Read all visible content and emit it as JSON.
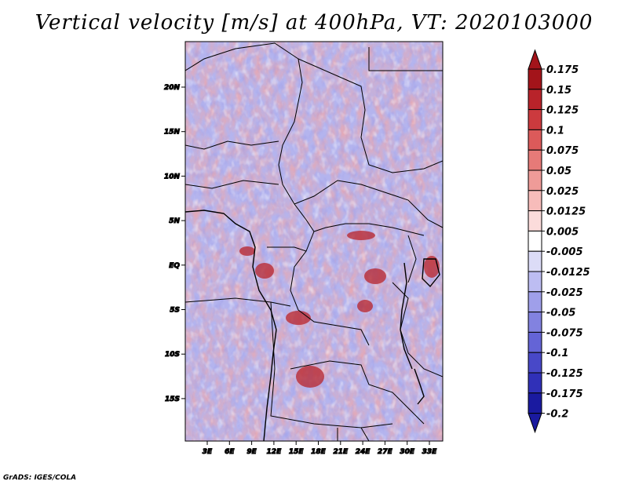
{
  "title": "Vertical velocity [m/s] at 400hPa, VT: 2020103000",
  "credit": "GrADS: IGES/COLA",
  "map": {
    "lat_labels": [
      "20N",
      "15N",
      "10N",
      "5N",
      "EQ",
      "5S",
      "10S",
      "15S"
    ],
    "lon_labels": [
      "3E",
      "6E",
      "9E",
      "12E",
      "15E",
      "18E",
      "21E",
      "24E",
      "27E",
      "30E",
      "33E"
    ]
  },
  "colorbar": {
    "levels": [
      "0.175",
      "0.15",
      "0.125",
      "0.1",
      "0.075",
      "0.05",
      "0.025",
      "0.0125",
      "0.005",
      "-0.005",
      "-0.0125",
      "-0.025",
      "-0.05",
      "-0.075",
      "-0.1",
      "-0.125",
      "-0.175",
      "-0.2"
    ],
    "colors": [
      "#a3141a",
      "#b8232a",
      "#cc3a3e",
      "#dc5a5a",
      "#e67a78",
      "#ef9b98",
      "#f7bcba",
      "#fbdcdb",
      "#ffffff",
      "#dcdcf7",
      "#bdbdf2",
      "#9f9fea",
      "#8282e0",
      "#6464d6",
      "#4848c8",
      "#3030b8",
      "#1a1aa0"
    ],
    "top_arrow_color": "#a3141a",
    "bottom_arrow_color": "#1a1aa0"
  }
}
